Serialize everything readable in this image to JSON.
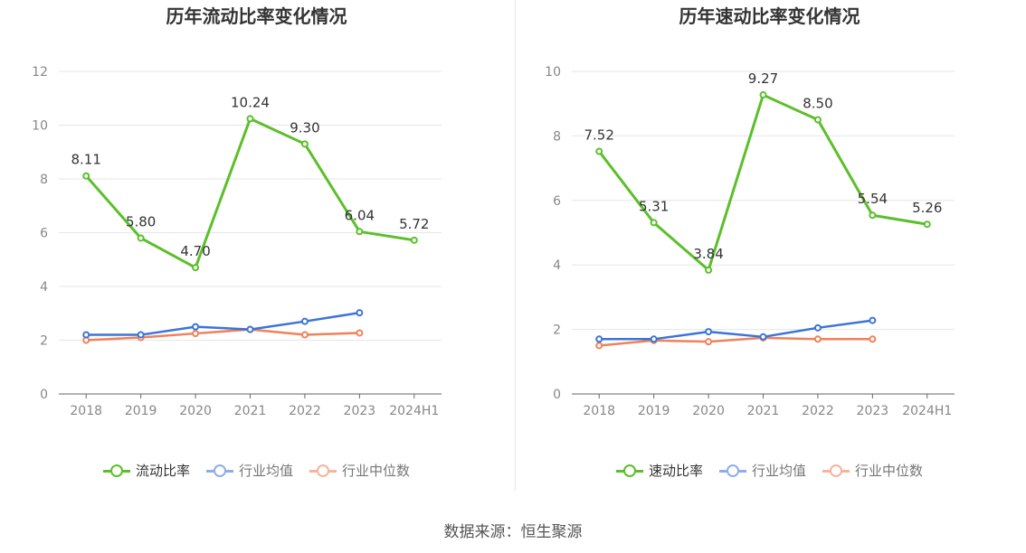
{
  "source": "数据来源：恒生聚源",
  "colors": {
    "main": "#5cbf2a",
    "avg": "#3b74d8",
    "median": "#f08158",
    "avg_legend": "#8faee8",
    "median_legend": "#f6b39d",
    "grid": "#e5e6eb",
    "axis": "#666666"
  },
  "chart_data": [
    {
      "type": "line",
      "title": "历年流动比率变化情况",
      "categories": [
        "2018",
        "2019",
        "2020",
        "2021",
        "2022",
        "2023",
        "2024H1"
      ],
      "ylim": [
        0,
        12
      ],
      "yticks": [
        "0",
        "2",
        "4",
        "6",
        "8",
        "10",
        "12"
      ],
      "grid": true,
      "legend_position": "bottom",
      "series": [
        {
          "name": "流动比率",
          "values": [
            8.11,
            5.8,
            4.7,
            10.24,
            9.3,
            6.04,
            5.72
          ],
          "labels": [
            "8.11",
            "5.80",
            "4.70",
            "10.24",
            "9.30",
            "6.04",
            "5.72"
          ]
        },
        {
          "name": "行业均值",
          "values": [
            2.2,
            2.2,
            2.5,
            2.4,
            2.7,
            3.02,
            null
          ]
        },
        {
          "name": "行业中位数",
          "values": [
            2.0,
            2.1,
            2.25,
            2.4,
            2.2,
            2.27,
            null
          ]
        }
      ]
    },
    {
      "type": "line",
      "title": "历年速动比率变化情况",
      "categories": [
        "2018",
        "2019",
        "2020",
        "2021",
        "2022",
        "2023",
        "2024H1"
      ],
      "ylim": [
        0,
        10
      ],
      "yticks": [
        "0",
        "2",
        "4",
        "6",
        "8",
        "10"
      ],
      "grid": true,
      "legend_position": "bottom",
      "series": [
        {
          "name": "速动比率",
          "values": [
            7.52,
            5.31,
            3.84,
            9.27,
            8.5,
            5.54,
            5.26
          ],
          "labels": [
            "7.52",
            "5.31",
            "3.84",
            "9.27",
            "8.50",
            "5.54",
            "5.26"
          ]
        },
        {
          "name": "行业均值",
          "values": [
            1.7,
            1.7,
            1.93,
            1.77,
            2.05,
            2.28,
            null
          ]
        },
        {
          "name": "行业中位数",
          "values": [
            1.5,
            1.66,
            1.62,
            1.74,
            1.7,
            1.7,
            null
          ]
        }
      ]
    }
  ]
}
